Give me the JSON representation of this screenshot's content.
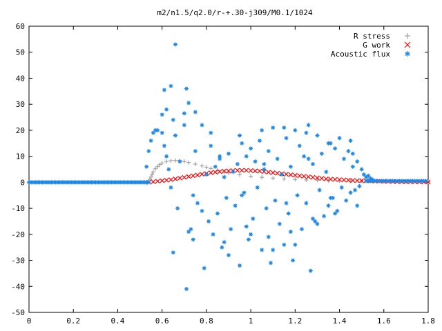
{
  "chart_data": {
    "type": "scatter",
    "title": "m2/n1.5/q2.0/r-+.30-j309/M0.1/1024",
    "xlabel": "",
    "ylabel": "",
    "xlim": [
      0,
      1.8
    ],
    "ylim": [
      -50,
      60
    ],
    "xticks": [
      0,
      0.2,
      0.4,
      0.6,
      0.8,
      1,
      1.2,
      1.4,
      1.6,
      1.8
    ],
    "xtick_labels": [
      "0",
      "0.2",
      "0.4",
      "0.6",
      "0.8",
      "1",
      "1.2",
      "1.4",
      "1.6",
      "1.8"
    ],
    "yticks": [
      -50,
      -40,
      -30,
      -20,
      -10,
      0,
      10,
      20,
      30,
      40,
      50,
      60
    ],
    "ytick_labels": [
      "-50",
      "-40",
      "-30",
      "-20",
      "-10",
      "0",
      "10",
      "20",
      "30",
      "40",
      "50",
      "60"
    ],
    "grid": false,
    "legend_position": "top-right",
    "series": [
      {
        "name": "R stress",
        "marker": "plus",
        "color": "#a0a0a0",
        "x": [
          0.54,
          0.545,
          0.55,
          0.555,
          0.56,
          0.57,
          0.58,
          0.59,
          0.6,
          0.62,
          0.64,
          0.66,
          0.68,
          0.7,
          0.72,
          0.75,
          0.78,
          0.8,
          0.82,
          0.85,
          0.88,
          0.9,
          0.95,
          1.0,
          1.05,
          1.1,
          1.15,
          1.2,
          1.25,
          1.3,
          1.35,
          1.4,
          1.45,
          1.5,
          1.55,
          1.6,
          1.65,
          1.7,
          1.75,
          1.8
        ],
        "y": [
          0.5,
          1.2,
          2.0,
          3.0,
          4.0,
          5.2,
          6.0,
          6.8,
          7.4,
          8.0,
          8.3,
          8.4,
          8.3,
          8.0,
          7.6,
          7.0,
          6.3,
          5.8,
          5.3,
          4.6,
          4.0,
          3.6,
          2.9,
          2.3,
          1.9,
          1.6,
          1.3,
          1.1,
          0.9,
          0.8,
          0.7,
          0.6,
          0.5,
          0.45,
          0.4,
          0.35,
          0.3,
          0.25,
          0.2,
          0.15
        ]
      },
      {
        "name": "G work",
        "marker": "cross",
        "color": "#ff0000",
        "x": [
          0.54,
          0.56,
          0.58,
          0.6,
          0.62,
          0.64,
          0.66,
          0.68,
          0.7,
          0.72,
          0.74,
          0.76,
          0.78,
          0.8,
          0.82,
          0.84,
          0.86,
          0.88,
          0.9,
          0.92,
          0.94,
          0.96,
          0.98,
          1.0,
          1.02,
          1.04,
          1.06,
          1.08,
          1.1,
          1.12,
          1.14,
          1.16,
          1.18,
          1.2,
          1.22,
          1.24,
          1.26,
          1.28,
          1.3,
          1.32,
          1.34,
          1.36,
          1.38,
          1.4,
          1.42,
          1.44,
          1.46,
          1.48,
          1.5,
          1.52,
          1.54,
          1.56,
          1.58,
          1.6,
          1.62,
          1.64,
          1.66,
          1.68,
          1.7,
          1.72,
          1.74,
          1.76,
          1.78,
          1.8
        ],
        "y": [
          0.0,
          0.2,
          0.4,
          0.6,
          0.8,
          1.0,
          1.3,
          1.6,
          1.9,
          2.2,
          2.5,
          2.8,
          3.1,
          3.4,
          3.7,
          3.9,
          4.1,
          4.3,
          4.4,
          4.5,
          4.6,
          4.6,
          4.6,
          4.5,
          4.4,
          4.3,
          4.1,
          3.9,
          3.7,
          3.5,
          3.3,
          3.1,
          2.9,
          2.7,
          2.5,
          2.3,
          2.1,
          1.9,
          1.7,
          1.5,
          1.3,
          1.2,
          1.1,
          1.0,
          0.9,
          0.8,
          0.7,
          0.65,
          0.6,
          0.55,
          0.5,
          0.45,
          0.4,
          0.35,
          0.3,
          0.28,
          0.25,
          0.22,
          0.2,
          0.18,
          0.16,
          0.14,
          0.12,
          0.1
        ]
      },
      {
        "name": "Acoustic flux",
        "marker": "asterisk",
        "color": "#1e88e5",
        "x": [
          0.53,
          0.54,
          0.55,
          0.56,
          0.57,
          0.58,
          0.6,
          0.61,
          0.62,
          0.63,
          0.64,
          0.65,
          0.66,
          0.67,
          0.68,
          0.7,
          0.71,
          0.72,
          0.73,
          0.74,
          0.75,
          0.76,
          0.78,
          0.79,
          0.8,
          0.81,
          0.82,
          0.83,
          0.84,
          0.85,
          0.86,
          0.87,
          0.88,
          0.89,
          0.9,
          0.91,
          0.92,
          0.93,
          0.94,
          0.95,
          0.96,
          0.97,
          0.98,
          0.99,
          1.0,
          1.01,
          1.02,
          1.03,
          1.04,
          1.05,
          1.06,
          1.07,
          1.08,
          1.09,
          1.1,
          1.11,
          1.12,
          1.13,
          1.14,
          1.15,
          1.16,
          1.17,
          1.18,
          1.19,
          1.2,
          1.21,
          1.22,
          1.23,
          1.24,
          1.25,
          1.26,
          1.27,
          1.28,
          1.29,
          1.3,
          1.31,
          1.32,
          1.33,
          1.34,
          1.35,
          1.36,
          1.37,
          1.38,
          1.39,
          1.4,
          1.41,
          1.42,
          1.43,
          1.44,
          1.45,
          1.46,
          1.47,
          1.48,
          1.49,
          1.5,
          1.51,
          1.52,
          1.53,
          1.54,
          1.55,
          0.66,
          0.61,
          0.64,
          0.71,
          0.75,
          0.7,
          0.65,
          0.62,
          0.6,
          0.72,
          0.74,
          0.9,
          1.0,
          1.1,
          1.2,
          1.3,
          0.82,
          0.95,
          1.05,
          1.15,
          1.25,
          1.35,
          1.45,
          0.78,
          0.88,
          0.98,
          1.08,
          1.18,
          1.28,
          1.38,
          1.48,
          0.86,
          0.96,
          1.06,
          1.16,
          1.26,
          1.36,
          1.46
        ],
        "y": [
          6.0,
          12.0,
          16.0,
          19.0,
          20.0,
          20.0,
          19.0,
          14.0,
          10.0,
          5.0,
          -2.0,
          -27.0,
          18.0,
          -10.0,
          8.0,
          26.5,
          -41.0,
          30.5,
          -18.0,
          -5.0,
          12.0,
          -8.0,
          22.0,
          -33.0,
          3.0,
          -15.0,
          14.0,
          -20.0,
          6.0,
          -12.0,
          9.0,
          -25.0,
          2.0,
          -6.0,
          11.0,
          -18.0,
          4.0,
          -9.0,
          7.0,
          -32.0,
          15.0,
          -4.0,
          10.0,
          -22.0,
          13.0,
          -14.0,
          8.0,
          -2.0,
          16.0,
          -26.0,
          5.0,
          -10.0,
          12.0,
          -31.0,
          21.0,
          -7.0,
          9.0,
          -16.0,
          3.0,
          -24.0,
          17.0,
          -12.0,
          6.0,
          -30.0,
          20.0,
          -5.0,
          14.0,
          -18.0,
          10.0,
          -8.0,
          22.0,
          -34.0,
          7.0,
          -15.0,
          18.0,
          -3.0,
          11.0,
          -13.0,
          4.0,
          -9.0,
          15.0,
          -6.0,
          13.0,
          -11.0,
          17.0,
          -2.0,
          9.0,
          -7.0,
          12.0,
          -4.0,
          6.0,
          -3.0,
          8.0,
          -1.5,
          5.0,
          3.0,
          2.0,
          2.5,
          1.5,
          1.0,
          53.0,
          35.5,
          37.0,
          36.0,
          27.0,
          22.0,
          24.0,
          28.0,
          26.0,
          -19.0,
          -22.0,
          -28.0,
          -20.0,
          -26.0,
          -24.0,
          -16.0,
          19.0,
          18.0,
          20.0,
          21.0,
          19.0,
          15.0,
          16.0,
          -11.0,
          -23.0,
          -17.0,
          -21.0,
          -19.0,
          -14.0,
          -12.0,
          -9.0,
          10.0,
          -5.0,
          7.0,
          -8.0,
          9.0,
          -6.0,
          11.0
        ]
      }
    ]
  }
}
